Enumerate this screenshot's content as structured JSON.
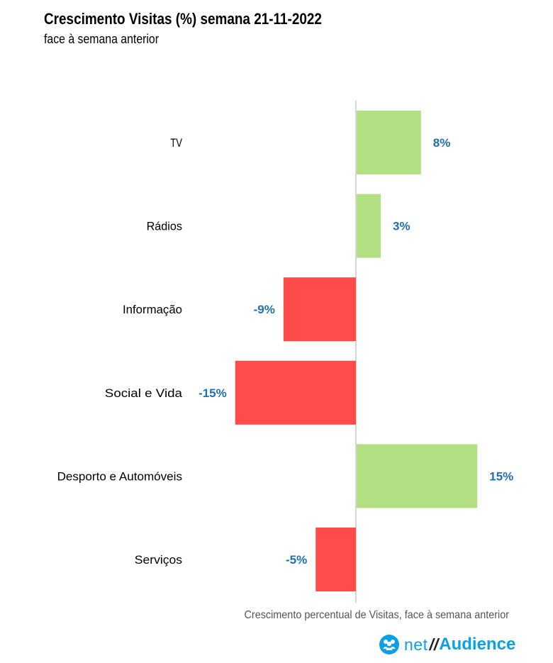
{
  "header": {
    "title": "Crescimento Visitas (%) semana 21-11-2022",
    "subtitle": "face à semana anterior"
  },
  "footnote": "Crescimento percentual de Visitas, face à semana anterior",
  "brand": {
    "net": "net",
    "slash": "//",
    "audience": "Audience",
    "icon": "people-icon"
  },
  "colors": {
    "positive": "#b3e083",
    "negative": "#ff4b4b",
    "label": "#1f6fb2",
    "axis": "#c8c8c8"
  },
  "chart_data": {
    "type": "bar",
    "orientation": "horizontal",
    "categories": [
      "TV",
      "Rádios",
      "Informação",
      "Social e Vida",
      "Desporto e Automóveis",
      "Serviços"
    ],
    "values": [
      8,
      3,
      -9,
      -15,
      15,
      -5
    ],
    "data_labels": [
      "8%",
      "3%",
      "-9%",
      "-15%",
      "15%",
      "-5%"
    ],
    "unit": "%",
    "xlim": [
      -15,
      15
    ],
    "grid": false,
    "legend": "none"
  }
}
